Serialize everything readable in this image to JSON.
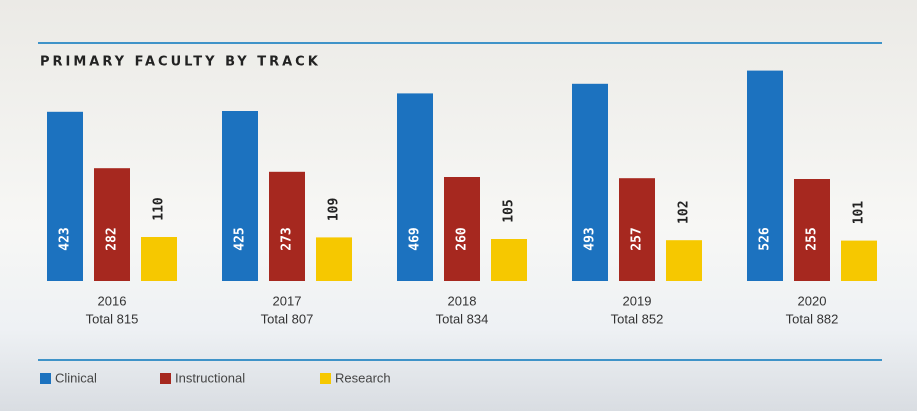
{
  "chart_data": {
    "type": "bar",
    "title": "PRIMARY FACULTY BY TRACK",
    "categories": [
      "2016",
      "2017",
      "2018",
      "2019",
      "2020"
    ],
    "category_totals": [
      "Total 815",
      "Total 807",
      "Total 834",
      "Total 852",
      "Total 882"
    ],
    "series": [
      {
        "name": "Clinical",
        "color": "#1c72bf",
        "values": [
          423,
          425,
          469,
          493,
          526
        ]
      },
      {
        "name": "Instructional",
        "color": "#a6281f",
        "values": [
          282,
          273,
          260,
          257,
          255
        ]
      },
      {
        "name": "Research",
        "color": "#f6c800",
        "values": [
          110,
          109,
          105,
          102,
          101
        ]
      }
    ],
    "legend": "bottom-left"
  }
}
